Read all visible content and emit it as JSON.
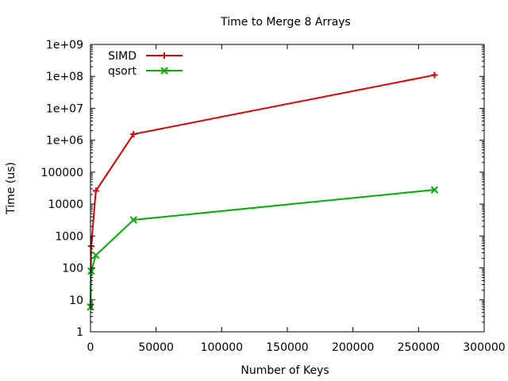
{
  "chart_data": {
    "type": "line",
    "title": "Time to Merge 8 Arrays",
    "xlabel": "Number of Keys",
    "ylabel": "Time (us)",
    "xlim": [
      0,
      300000
    ],
    "ylim": [
      1,
      1000000000
    ],
    "yscale": "log",
    "grid": false,
    "legend_position": "top-left",
    "x_ticks": [
      0,
      50000,
      100000,
      150000,
      200000,
      250000,
      300000
    ],
    "x_tick_labels": [
      "0",
      "50000",
      "100000",
      "150000",
      "200000",
      "250000",
      "300000"
    ],
    "y_ticks": [
      1,
      10,
      100,
      1000,
      10000,
      100000,
      1000000,
      10000000,
      100000000,
      1000000000
    ],
    "y_tick_labels": [
      "1",
      "10",
      "100",
      "1000",
      "10000",
      "100000",
      "1e+06",
      "1e+07",
      "1e+08",
      "1e+09"
    ],
    "series": [
      {
        "name": "SIMD",
        "color": "#e00000",
        "marker": "plus",
        "x": [
          64,
          512,
          4096,
          32768,
          262144
        ],
        "y": [
          7,
          480,
          26000,
          1550000,
          110000000
        ]
      },
      {
        "name": "qsort",
        "color": "#00b000",
        "marker": "cross",
        "x": [
          64,
          512,
          4096,
          32768,
          262144
        ],
        "y": [
          6,
          80,
          250,
          3200,
          28000
        ]
      }
    ]
  }
}
